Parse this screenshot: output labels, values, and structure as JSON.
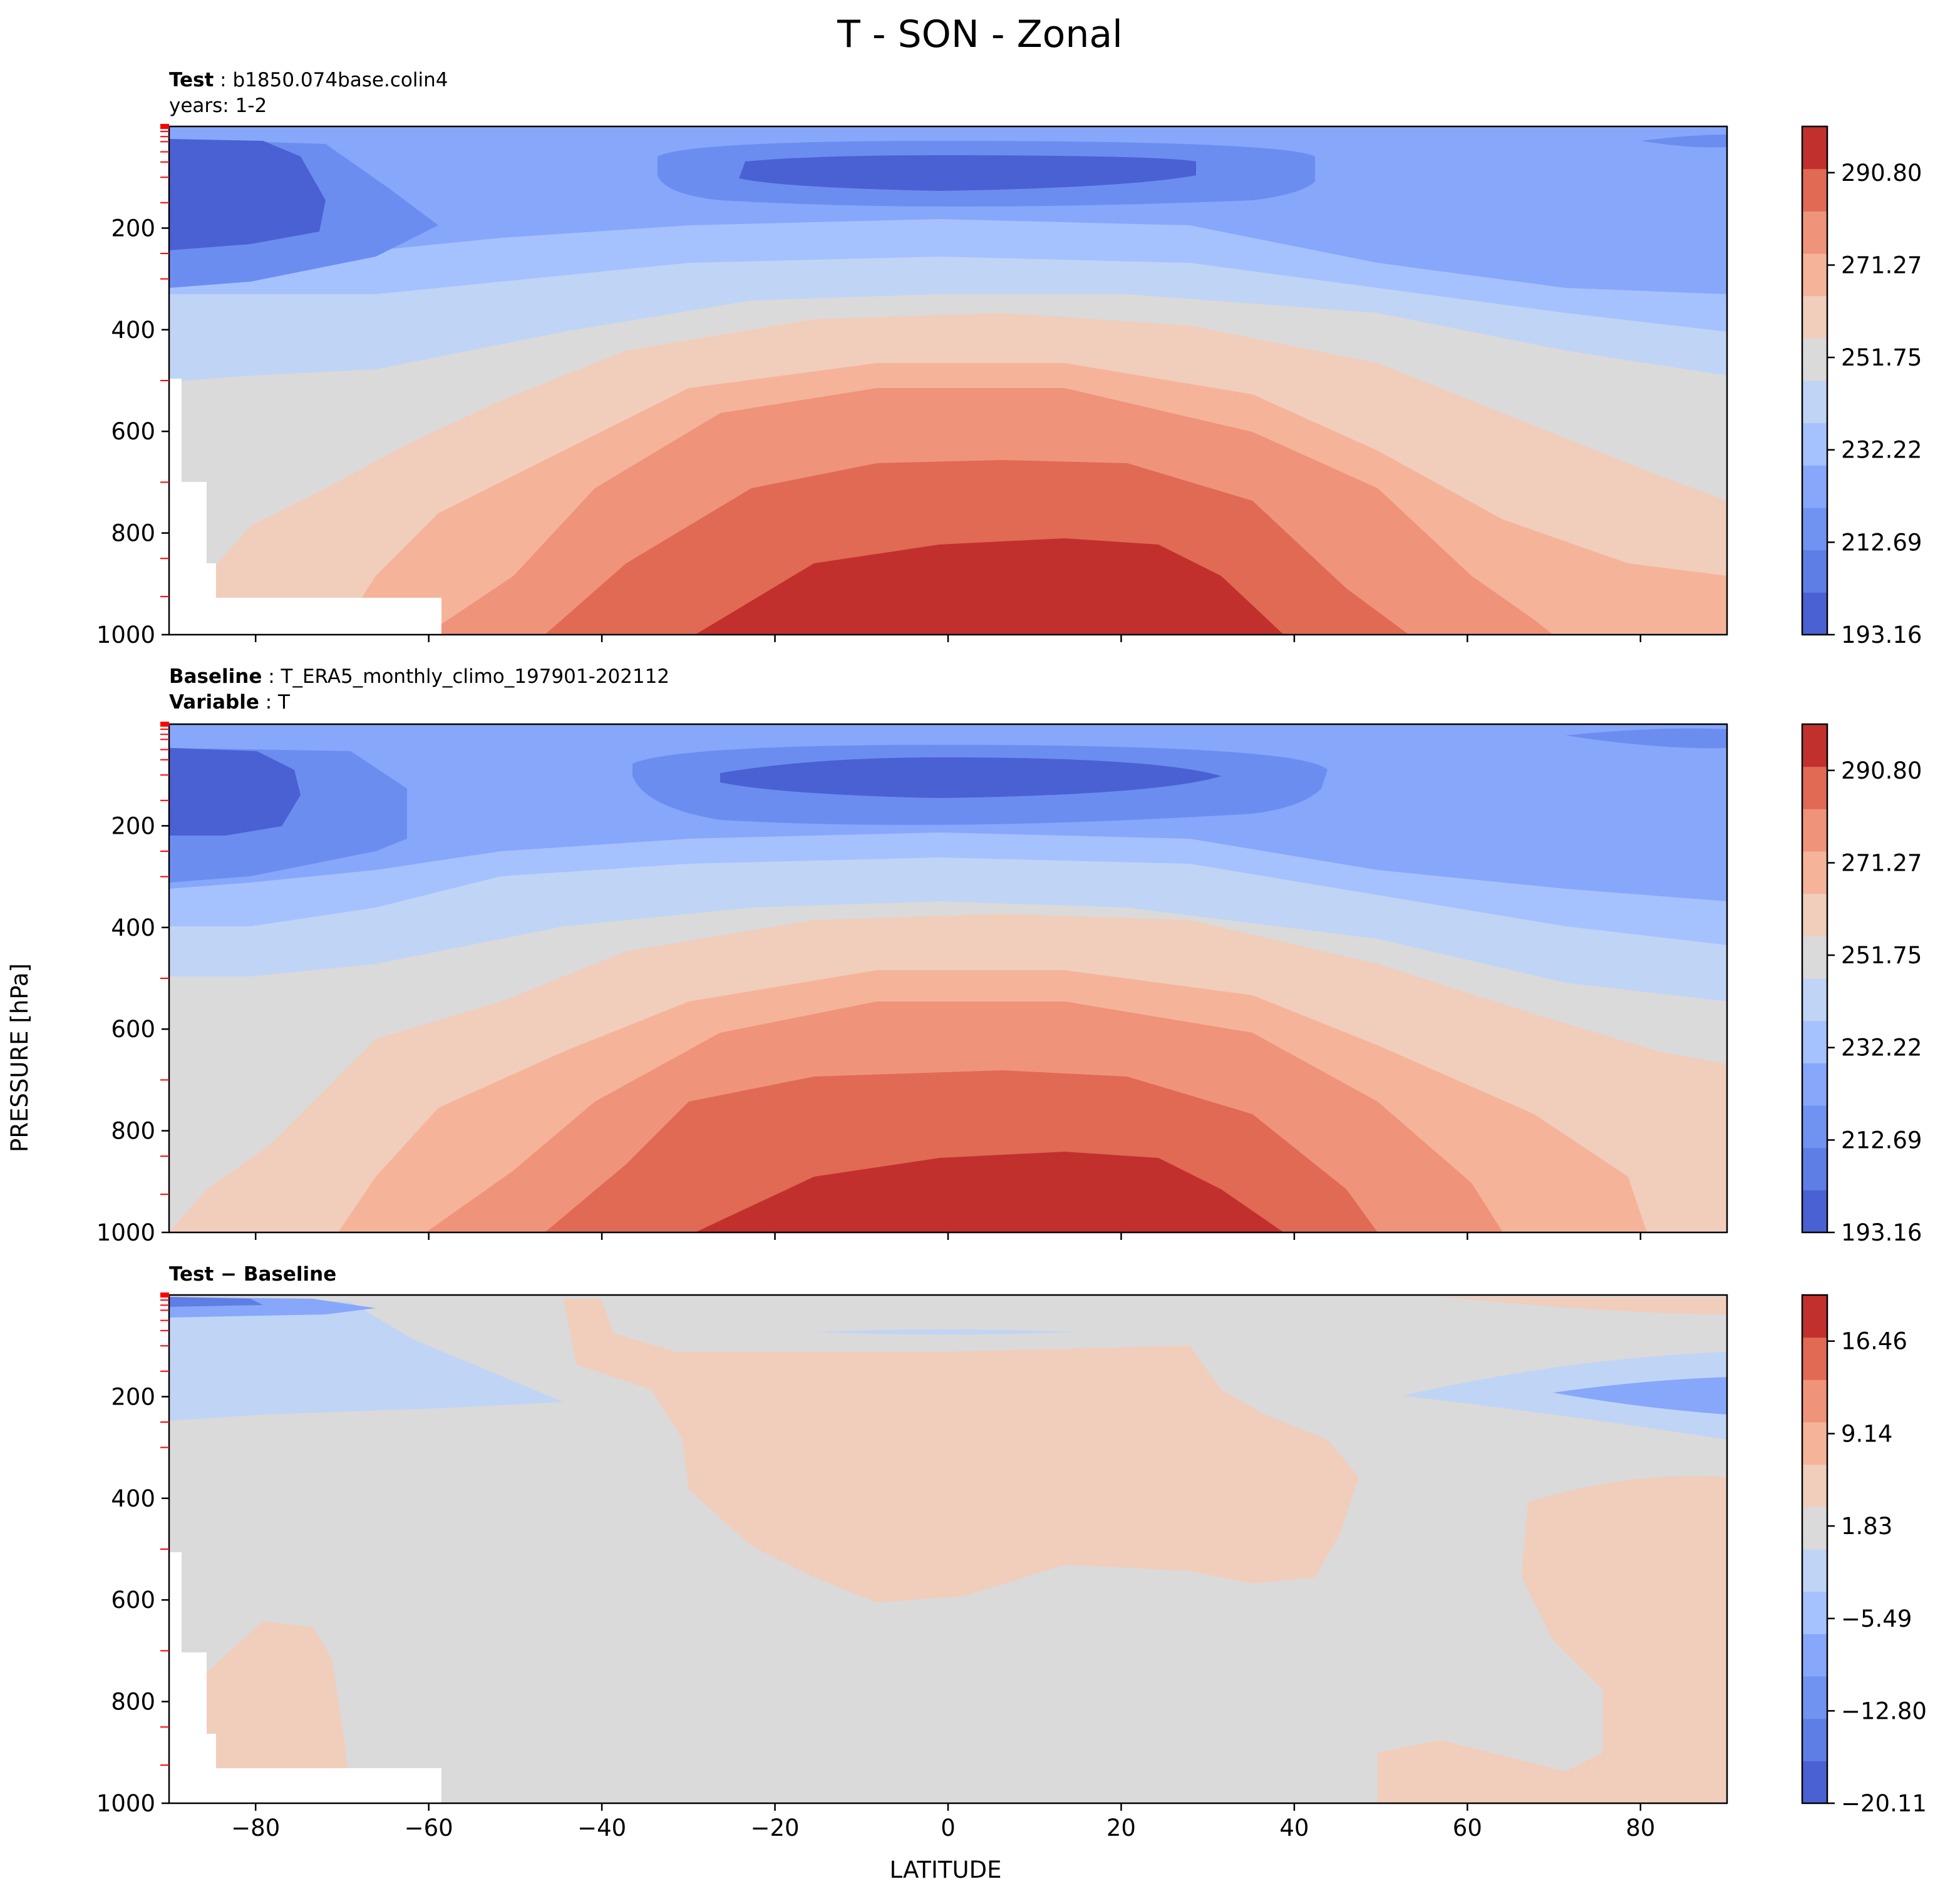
{
  "title": "T - SON - Zonal",
  "xlabel": "LATITUDE",
  "ylabel": "PRESSURE [hPa]",
  "panels": {
    "test": {
      "label1": "Test",
      "value1": "b1850.074base.colin4",
      "line2": "years: 1-2"
    },
    "baseline": {
      "label1": "Baseline",
      "value1": "T_ERA5_monthly_climo_197901-202112",
      "label2": "Variable",
      "value2": "T"
    },
    "diff": {
      "label": "Test − Baseline"
    }
  },
  "colors": {
    "t_levels": [
      "#4a61d3",
      "#5e7ee6",
      "#7093f2",
      "#87a7fb",
      "#a6c2fe",
      "#c0d4f5",
      "#dadada",
      "#f1cdbc",
      "#f5b49a",
      "#f0937b",
      "#e06a54",
      "#c2302e"
    ],
    "d_levels": [
      "#4a61d3",
      "#5e7ee6",
      "#7093f2",
      "#87a7fb",
      "#a6c2fe",
      "#c0d4f5",
      "#dadada",
      "#f1cdbc",
      "#f5b49a",
      "#f0937b",
      "#e06a54",
      "#c2302e"
    ]
  },
  "chart_data": [
    {
      "type": "heatmap",
      "panel": "Test",
      "variable": "T",
      "x": [
        -90,
        -80,
        -60,
        -40,
        -20,
        0,
        20,
        40,
        60,
        80,
        90
      ],
      "x_tick_labels": [
        "−80",
        "−60",
        "−40",
        "−20",
        "0",
        "20",
        "40",
        "60",
        "80"
      ],
      "y_tick_labels": [
        "200",
        "400",
        "600",
        "800",
        "1000"
      ],
      "xlim": [
        -90,
        90
      ],
      "ylim": [
        1000,
        0
      ],
      "colorbar_ticks": [
        "193.16",
        "212.69",
        "232.22",
        "251.75",
        "271.27",
        "290.80"
      ],
      "colorbar_range": [
        193.16,
        300.57
      ],
      "description_values_K": {
        "surface_equator": 295,
        "tropopause_equator": 196,
        "surface_south_pole": 240,
        "surface_north_pole": 262
      }
    },
    {
      "type": "heatmap",
      "panel": "Baseline",
      "variable": "T",
      "xlim": [
        -90,
        90
      ],
      "ylim": [
        1000,
        0
      ],
      "colorbar_ticks": [
        "193.16",
        "212.69",
        "232.22",
        "251.75",
        "271.27",
        "290.80"
      ],
      "colorbar_range": [
        193.16,
        300.57
      ]
    },
    {
      "type": "heatmap",
      "panel": "Test − Baseline",
      "variable": "T",
      "xlim": [
        -90,
        90
      ],
      "ylim": [
        1000,
        0
      ],
      "colorbar_ticks": [
        "−20.11",
        "−12.80",
        "−5.49",
        "1.83",
        "9.14",
        "16.46"
      ],
      "colorbar_range": [
        -20.11,
        20.11
      ]
    }
  ]
}
